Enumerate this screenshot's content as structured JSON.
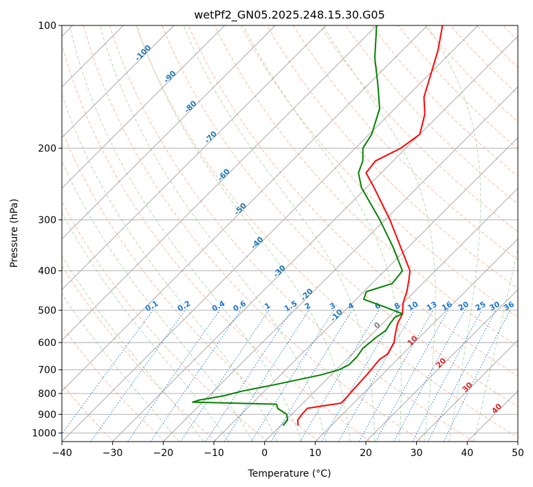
{
  "chart_data": {
    "type": "line",
    "subtype": "skew-t log-p diagram",
    "title": "wetPf2_GN05.2025.248.15.30.G05",
    "xlabel": "Temperature (°C)",
    "ylabel": "Pressure (hPa)",
    "xlim": [
      -40,
      50
    ],
    "ylim_pressure": [
      1050,
      100
    ],
    "y_scale": "log",
    "grid": true,
    "x_ticks": [
      "−40",
      "−30",
      "−20",
      "−10",
      "0",
      "10",
      "20",
      "30",
      "40",
      "50"
    ],
    "y_ticks": [
      "100",
      "200",
      "300",
      "400",
      "500",
      "600",
      "700",
      "800",
      "900",
      "1000"
    ],
    "series": [
      {
        "role": "temperature",
        "color": "#ff0000",
        "points": [
          {
            "p": 960,
            "t": 3.5
          },
          {
            "p": 930,
            "t": 2.3
          },
          {
            "p": 900,
            "t": 2.0
          },
          {
            "p": 870,
            "t": 1.9
          },
          {
            "p": 860,
            "t": 4.0
          },
          {
            "p": 845,
            "t": 7.5
          },
          {
            "p": 820,
            "t": 7.5
          },
          {
            "p": 790,
            "t": 7.3
          },
          {
            "p": 720,
            "t": 7.0
          },
          {
            "p": 660,
            "t": 6.5
          },
          {
            "p": 640,
            "t": 7.0
          },
          {
            "p": 600,
            "t": 6.0
          },
          {
            "p": 570,
            "t": 4.5
          },
          {
            "p": 540,
            "t": 3.0
          },
          {
            "p": 510,
            "t": 2.0
          },
          {
            "p": 480,
            "t": 0.0
          },
          {
            "p": 450,
            "t": -1.5
          },
          {
            "p": 420,
            "t": -3.5
          },
          {
            "p": 400,
            "t": -5.0
          },
          {
            "p": 350,
            "t": -11.5
          },
          {
            "p": 300,
            "t": -19.0
          },
          {
            "p": 250,
            "t": -28.5
          },
          {
            "p": 230,
            "t": -33.0
          },
          {
            "p": 215,
            "t": -33.5
          },
          {
            "p": 200,
            "t": -31.0
          },
          {
            "p": 185,
            "t": -30.0
          },
          {
            "p": 165,
            "t": -33.0
          },
          {
            "p": 150,
            "t": -36.5
          },
          {
            "p": 130,
            "t": -40.0
          },
          {
            "p": 115,
            "t": -43.0
          },
          {
            "p": 100,
            "t": -47.0
          }
        ]
      },
      {
        "role": "dewpoint",
        "color": "#008000",
        "points": [
          {
            "p": 960,
            "t": 0.5
          },
          {
            "p": 930,
            "t": 0.3
          },
          {
            "p": 900,
            "t": -1.0
          },
          {
            "p": 870,
            "t": -4.0
          },
          {
            "p": 850,
            "t": -5.0
          },
          {
            "p": 840,
            "t": -22.0
          },
          {
            "p": 830,
            "t": -21.0
          },
          {
            "p": 810,
            "t": -17.0
          },
          {
            "p": 790,
            "t": -14.5
          },
          {
            "p": 760,
            "t": -9.0
          },
          {
            "p": 720,
            "t": -2.0
          },
          {
            "p": 700,
            "t": 0.5
          },
          {
            "p": 680,
            "t": 1.5
          },
          {
            "p": 650,
            "t": 1.5
          },
          {
            "p": 620,
            "t": 1.0
          },
          {
            "p": 580,
            "t": 1.5
          },
          {
            "p": 560,
            "t": 2.0
          },
          {
            "p": 540,
            "t": 1.5
          },
          {
            "p": 520,
            "t": 1.2
          },
          {
            "p": 510,
            "t": 2.0
          },
          {
            "p": 490,
            "t": -3.0
          },
          {
            "p": 470,
            "t": -8.5
          },
          {
            "p": 450,
            "t": -9.5
          },
          {
            "p": 430,
            "t": -6.0
          },
          {
            "p": 400,
            "t": -6.5
          },
          {
            "p": 350,
            "t": -13.0
          },
          {
            "p": 300,
            "t": -21.0
          },
          {
            "p": 250,
            "t": -31.0
          },
          {
            "p": 230,
            "t": -34.5
          },
          {
            "p": 215,
            "t": -36.0
          },
          {
            "p": 200,
            "t": -38.5
          },
          {
            "p": 185,
            "t": -39.5
          },
          {
            "p": 160,
            "t": -43.0
          },
          {
            "p": 140,
            "t": -48.0
          },
          {
            "p": 120,
            "t": -54.0
          },
          {
            "p": 100,
            "t": -60.0
          }
        ]
      }
    ],
    "isotherm_labels": [
      "-100",
      "-90",
      "-80",
      "-70",
      "-60",
      "-50",
      "-40",
      "-30",
      "-20",
      "-10"
    ],
    "mixing_ratio_labels": [
      "0.1",
      "0.2",
      "0.4",
      "0.6",
      "1",
      "1.5",
      "2",
      "3",
      "4",
      "6",
      "8",
      "10",
      "13",
      "16",
      "20",
      "25",
      "30",
      "36"
    ],
    "skewed_isotherm_labels": [
      "0",
      "10",
      "20",
      "30",
      "40"
    ],
    "colors": {
      "isobar": "#a8a8a8",
      "isotherm": "#9e9e9e",
      "dry_adiabat": "#f4a582",
      "moist_adiabat": "#a6d5a0",
      "mixing_ratio": "#1f77d0",
      "cold_label": "#1f77b4",
      "warm_label": "#d62728",
      "zero_label": "#7f7f7f"
    }
  }
}
